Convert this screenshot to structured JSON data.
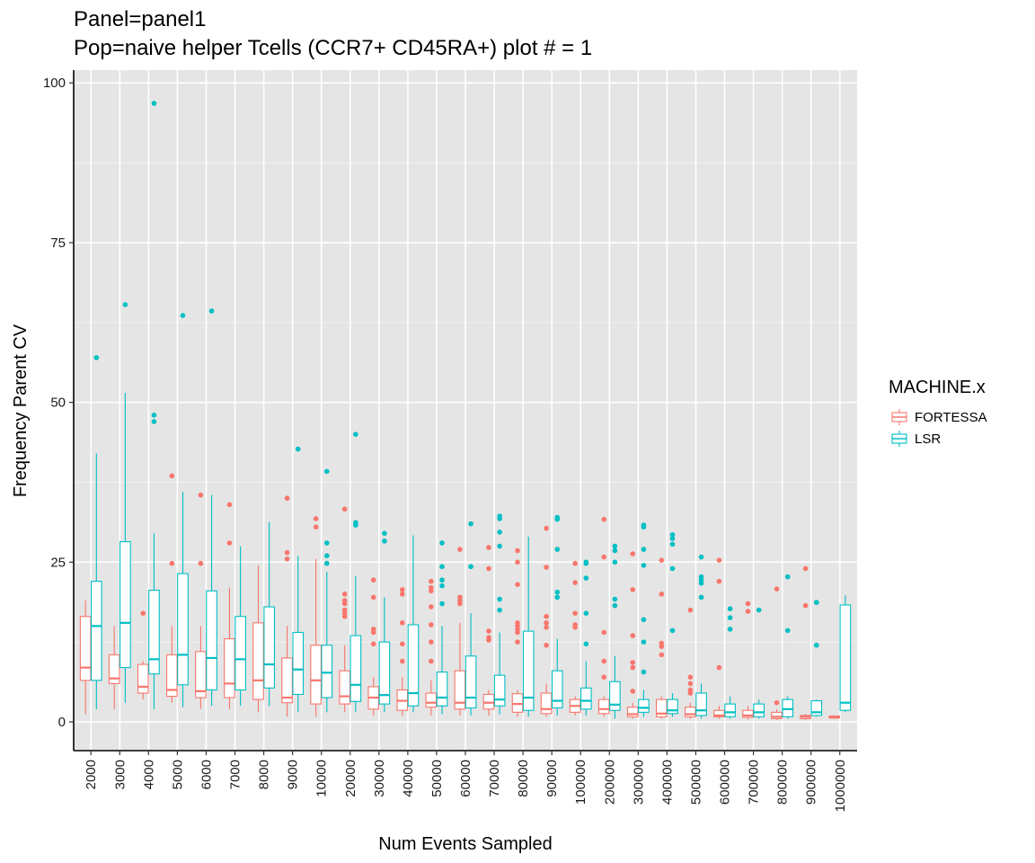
{
  "chart_data": {
    "type": "boxplot",
    "title": "Panel=panel1",
    "subtitle": "Pop=naive helper Tcells (CCR7+ CD45RA+) plot # = 1",
    "xlabel": "Num Events Sampled",
    "ylabel": "Frequency Parent CV",
    "ylim": [
      -4.5,
      102
    ],
    "yticks": [
      0,
      25,
      50,
      75,
      100
    ],
    "grid": true,
    "legend": {
      "title": "MACHINE.x",
      "position": "right"
    },
    "categories": [
      "2000",
      "3000",
      "4000",
      "5000",
      "6000",
      "7000",
      "8000",
      "9000",
      "10000",
      "20000",
      "30000",
      "40000",
      "50000",
      "60000",
      "70000",
      "80000",
      "90000",
      "100000",
      "200000",
      "300000",
      "400000",
      "500000",
      "600000",
      "700000",
      "800000",
      "900000",
      "1000000"
    ],
    "series": [
      {
        "name": "FORTESSA",
        "color": "#F8766D",
        "boxes": [
          {
            "min": 1.2,
            "q1": 6.5,
            "median": 8.5,
            "q3": 16.5,
            "max": 19,
            "outliers": []
          },
          {
            "min": 2,
            "q1": 6,
            "median": 6.8,
            "q3": 10.5,
            "max": 15,
            "outliers": []
          },
          {
            "min": 3.5,
            "q1": 4.5,
            "median": 5.5,
            "q3": 9,
            "max": 9.5,
            "outliers": [
              17
            ]
          },
          {
            "min": 3,
            "q1": 4,
            "median": 5,
            "q3": 10.5,
            "max": 15,
            "outliers": [
              38.5,
              24.8
            ]
          },
          {
            "min": 2,
            "q1": 3.8,
            "median": 4.8,
            "q3": 11,
            "max": 15,
            "outliers": [
              35.5,
              24.8
            ]
          },
          {
            "min": 2,
            "q1": 3.8,
            "median": 6,
            "q3": 13,
            "max": 21,
            "outliers": [
              34,
              28
            ]
          },
          {
            "min": 1.5,
            "q1": 3.5,
            "median": 6.5,
            "q3": 15.5,
            "max": 24.5,
            "outliers": []
          },
          {
            "min": 0.8,
            "q1": 3,
            "median": 3.8,
            "q3": 10,
            "max": 15,
            "outliers": [
              35,
              26.5,
              25.5
            ]
          },
          {
            "min": 0.8,
            "q1": 2.8,
            "median": 6.5,
            "q3": 12,
            "max": 25.5,
            "outliers": [
              31.8,
              30.5
            ]
          },
          {
            "min": 1.5,
            "q1": 2.8,
            "median": 4,
            "q3": 8,
            "max": 12,
            "outliers": [
              33.3,
              20,
              19,
              18.5,
              17.5,
              17,
              16.5
            ]
          },
          {
            "min": 1,
            "q1": 2,
            "median": 3.8,
            "q3": 5.5,
            "max": 7,
            "outliers": [
              22.2,
              19.5,
              14.5,
              14,
              12.2
            ]
          },
          {
            "min": 1,
            "q1": 1.8,
            "median": 3.3,
            "q3": 5,
            "max": 7,
            "outliers": [
              20.7,
              20,
              15.5,
              12.2,
              9.5
            ]
          },
          {
            "min": 1,
            "q1": 2.3,
            "median": 3,
            "q3": 4.5,
            "max": 6.5,
            "outliers": [
              22,
              21,
              20.5,
              18,
              15.2,
              12.5,
              9.5
            ]
          },
          {
            "min": 1,
            "q1": 2,
            "median": 3,
            "q3": 8,
            "max": 15.5,
            "outliers": [
              27,
              19.5,
              19,
              18.5
            ]
          },
          {
            "min": 1,
            "q1": 2,
            "median": 3,
            "q3": 4.3,
            "max": 5,
            "outliers": [
              27.3,
              24,
              14.2,
              13.2,
              12.8
            ]
          },
          {
            "min": 0.8,
            "q1": 1.5,
            "median": 2.8,
            "q3": 4.4,
            "max": 5,
            "outliers": [
              26.8,
              25,
              21.5,
              15.5,
              15,
              14.5,
              14,
              12.5
            ]
          },
          {
            "min": 0.8,
            "q1": 1.3,
            "median": 2,
            "q3": 4.5,
            "max": 6,
            "outliers": [
              30.3,
              24.2,
              16.5,
              15.5,
              14.8,
              12
            ]
          },
          {
            "min": 1,
            "q1": 1.5,
            "median": 2.5,
            "q3": 3.5,
            "max": 4,
            "outliers": [
              24.8,
              21.8,
              17,
              15.2,
              14.8
            ]
          },
          {
            "min": 0.8,
            "q1": 1.3,
            "median": 2,
            "q3": 3.5,
            "max": 4,
            "outliers": [
              31.7,
              25.8,
              14,
              9.5,
              7
            ]
          },
          {
            "min": 0.5,
            "q1": 0.8,
            "median": 1.2,
            "q3": 2.3,
            "max": 3,
            "outliers": [
              26.3,
              20.7,
              13.5,
              9.3,
              8.5,
              4.8
            ]
          },
          {
            "min": 0.5,
            "q1": 0.8,
            "median": 1.3,
            "q3": 3.5,
            "max": 4,
            "outliers": [
              25.3,
              20,
              12.3,
              11.8,
              10.5
            ]
          },
          {
            "min": 0.5,
            "q1": 0.8,
            "median": 1.2,
            "q3": 2.3,
            "max": 3,
            "outliers": [
              17.5,
              7,
              6,
              5,
              4.5
            ]
          },
          {
            "min": 0.5,
            "q1": 0.8,
            "median": 1,
            "q3": 1.8,
            "max": 2.5,
            "outliers": [
              25.3,
              22,
              8.5
            ]
          },
          {
            "min": 0.4,
            "q1": 0.7,
            "median": 1,
            "q3": 1.8,
            "max": 2.5,
            "outliers": [
              18.5,
              17.3
            ]
          },
          {
            "min": 0.3,
            "q1": 0.5,
            "median": 0.8,
            "q3": 1.5,
            "max": 2,
            "outliers": [
              20.8,
              3
            ]
          },
          {
            "min": 0.3,
            "q1": 0.5,
            "median": 0.8,
            "q3": 1,
            "max": 1.2,
            "outliers": [
              24,
              18.2
            ]
          },
          {
            "min": 0.5,
            "q1": 0.6,
            "median": 0.8,
            "q3": 0.9,
            "max": 1,
            "outliers": []
          }
        ]
      },
      {
        "name": "LSR",
        "color": "#00BFC4",
        "boxes": [
          {
            "min": 2,
            "q1": 6.5,
            "median": 15,
            "q3": 22,
            "max": 42,
            "outliers": [
              57
            ]
          },
          {
            "min": 3,
            "q1": 8.5,
            "median": 15.5,
            "q3": 28.2,
            "max": 51.5,
            "outliers": [
              65.3
            ]
          },
          {
            "min": 2,
            "q1": 7.5,
            "median": 9.8,
            "q3": 20.6,
            "max": 29.5,
            "outliers": [
              96.8,
              48,
              47
            ]
          },
          {
            "min": 2.3,
            "q1": 5.8,
            "median": 10.5,
            "q3": 23.2,
            "max": 36,
            "outliers": [
              63.6
            ]
          },
          {
            "min": 2.5,
            "q1": 5,
            "median": 10,
            "q3": 20.5,
            "max": 35.5,
            "outliers": [
              64.3
            ]
          },
          {
            "min": 2.5,
            "q1": 5,
            "median": 9.8,
            "q3": 16.5,
            "max": 27.5,
            "outliers": []
          },
          {
            "min": 2.5,
            "q1": 5.3,
            "median": 9,
            "q3": 18,
            "max": 31.3,
            "outliers": []
          },
          {
            "min": 1.5,
            "q1": 4.3,
            "median": 8.2,
            "q3": 14,
            "max": 26,
            "outliers": [
              42.7
            ]
          },
          {
            "min": 1.5,
            "q1": 3.8,
            "median": 7.7,
            "q3": 12,
            "max": 23.5,
            "outliers": [
              39.2,
              28,
              26,
              24.8
            ]
          },
          {
            "min": 1.5,
            "q1": 3.2,
            "median": 5.8,
            "q3": 13.5,
            "max": 22.8,
            "outliers": [
              45,
              31.2,
              30.8
            ]
          },
          {
            "min": 1.5,
            "q1": 2.8,
            "median": 4.2,
            "q3": 12.5,
            "max": 19.5,
            "outliers": [
              29.5,
              28.3
            ]
          },
          {
            "min": 1.5,
            "q1": 2.5,
            "median": 4.5,
            "q3": 15.2,
            "max": 29.2,
            "outliers": []
          },
          {
            "min": 1.2,
            "q1": 2.5,
            "median": 3.8,
            "q3": 7.8,
            "max": 15,
            "outliers": [
              28,
              24.3,
              22.2,
              21.3,
              18.5
            ]
          },
          {
            "min": 1,
            "q1": 2.2,
            "median": 3.8,
            "q3": 10.3,
            "max": 17,
            "outliers": [
              31,
              24.3
            ]
          },
          {
            "min": 1.2,
            "q1": 2.5,
            "median": 3.5,
            "q3": 7.3,
            "max": 14,
            "outliers": [
              32.2,
              31.8,
              29.7,
              27.5,
              19.2,
              17.5
            ]
          },
          {
            "min": 0.8,
            "q1": 1.8,
            "median": 3.8,
            "q3": 14.2,
            "max": 29,
            "outliers": []
          },
          {
            "min": 1,
            "q1": 2.2,
            "median": 3.3,
            "q3": 8,
            "max": 13,
            "outliers": [
              32,
              31.7,
              27,
              20.3,
              19.5
            ]
          },
          {
            "min": 1,
            "q1": 2,
            "median": 3.3,
            "q3": 5.3,
            "max": 9.5,
            "outliers": [
              25,
              24.8,
              22.5,
              17,
              12.2
            ]
          },
          {
            "min": 0.5,
            "q1": 1.8,
            "median": 2.7,
            "q3": 6.3,
            "max": 10.3,
            "outliers": [
              27.5,
              26.8,
              25,
              19.2,
              18.2
            ]
          },
          {
            "min": 0.8,
            "q1": 1.5,
            "median": 2.2,
            "q3": 3.5,
            "max": 5,
            "outliers": [
              30.8,
              30.5,
              27,
              24.5,
              16,
              12.5,
              7.8
            ]
          },
          {
            "min": 0.8,
            "q1": 1.3,
            "median": 1.8,
            "q3": 3.5,
            "max": 4.5,
            "outliers": [
              29.3,
              28.7,
              27.8,
              24,
              14.3
            ]
          },
          {
            "min": 0.5,
            "q1": 1,
            "median": 1.8,
            "q3": 4.5,
            "max": 6,
            "outliers": [
              25.8,
              22.7,
              22.2,
              21.7,
              19.5
            ]
          },
          {
            "min": 0.5,
            "q1": 0.8,
            "median": 1.5,
            "q3": 2.8,
            "max": 4,
            "outliers": [
              17.7,
              16.3,
              14.5
            ]
          },
          {
            "min": 0.5,
            "q1": 0.8,
            "median": 1.5,
            "q3": 2.8,
            "max": 3.5,
            "outliers": [
              17.5
            ]
          },
          {
            "min": 0.5,
            "q1": 0.8,
            "median": 2,
            "q3": 3.5,
            "max": 4,
            "outliers": [
              22.7,
              14.3
            ]
          },
          {
            "min": 0.8,
            "q1": 1,
            "median": 1.5,
            "q3": 3.3,
            "max": 3.5,
            "outliers": [
              18.7,
              12
            ]
          },
          {
            "min": 1.5,
            "q1": 1.8,
            "median": 3,
            "q3": 18.3,
            "max": 19.8,
            "outliers": []
          }
        ]
      }
    ]
  }
}
